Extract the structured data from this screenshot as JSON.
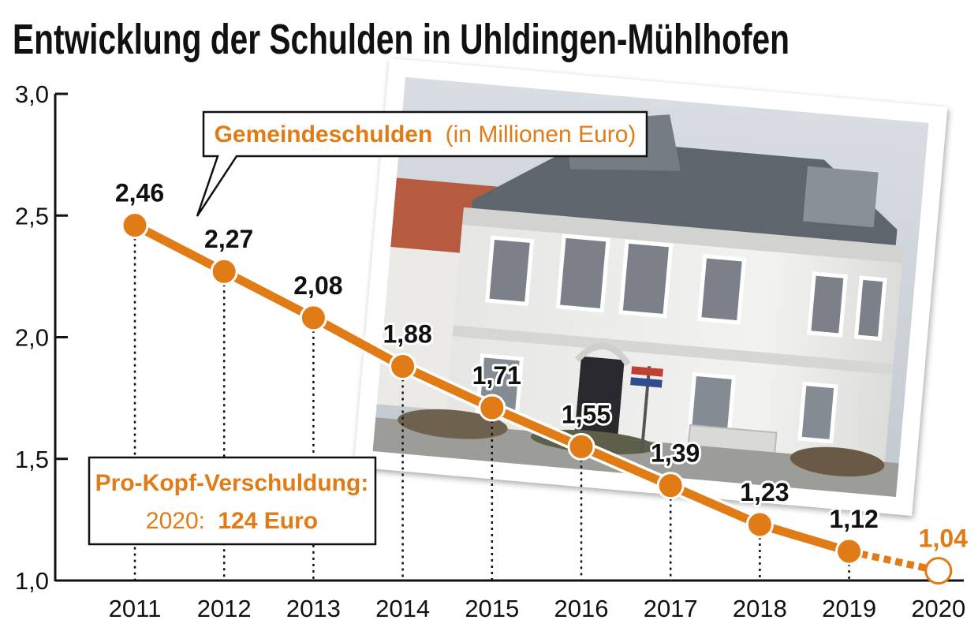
{
  "chart_data": {
    "type": "line",
    "title": "Entwicklung der Schulden in Uhldingen-Mühlhofen",
    "categories": [
      "2011",
      "2012",
      "2013",
      "2014",
      "2015",
      "2016",
      "2017",
      "2018",
      "2019",
      "2020"
    ],
    "values": [
      2.46,
      2.27,
      2.08,
      1.88,
      1.71,
      1.55,
      1.39,
      1.23,
      1.12,
      1.04
    ],
    "data_labels": [
      "2,46",
      "2,27",
      "2,08",
      "1,88",
      "1,71",
      "1,55",
      "1,39",
      "1,23",
      "1,12",
      "1,04"
    ],
    "y_ticks": [
      "1,0",
      "1,5",
      "2,0",
      "2,5",
      "3,0"
    ],
    "y_tick_values": [
      1.0,
      1.5,
      2.0,
      2.5,
      3.0
    ],
    "ylim": [
      1.0,
      3.0
    ],
    "grid": false,
    "series_color": "#e07b16",
    "legend": {
      "main": "Gemeindeschulden",
      "unit": "(in Millionen Euro)"
    },
    "info_box": {
      "heading": "Pro-Kopf-Verschuldung:",
      "year": "2020:",
      "value": "124 Euro"
    },
    "last_point_style": "dashed-open"
  }
}
